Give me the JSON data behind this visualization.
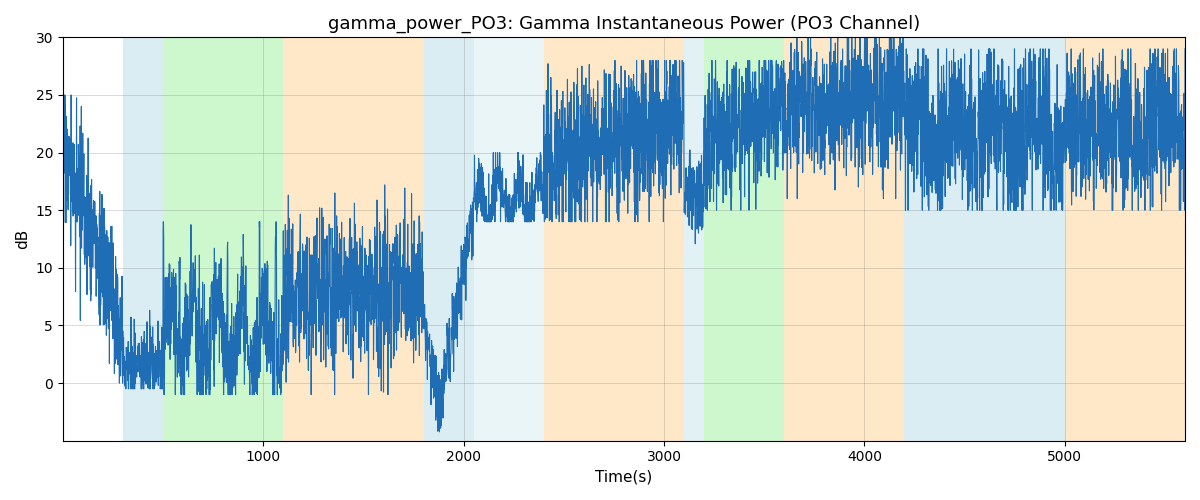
{
  "title": "gamma_power_PO3: Gamma Instantaneous Power (PO3 Channel)",
  "xlabel": "Time(s)",
  "ylabel": "dB",
  "xlim": [
    0,
    5600
  ],
  "ylim": [
    -5,
    30
  ],
  "yticks": [
    0,
    5,
    10,
    15,
    20,
    25,
    30
  ],
  "xticks": [
    1000,
    2000,
    3000,
    4000,
    5000
  ],
  "line_color": "#1f6eb5",
  "line_width": 0.8,
  "bg_regions": [
    {
      "xmin": 300,
      "xmax": 500,
      "color": "#add8e6",
      "alpha": 0.45
    },
    {
      "xmin": 500,
      "xmax": 1100,
      "color": "#90ee90",
      "alpha": 0.45
    },
    {
      "xmin": 1100,
      "xmax": 1800,
      "color": "#ffd699",
      "alpha": 0.55
    },
    {
      "xmin": 1800,
      "xmax": 2050,
      "color": "#add8e6",
      "alpha": 0.45
    },
    {
      "xmin": 2050,
      "xmax": 2400,
      "color": "#add8e6",
      "alpha": 0.25
    },
    {
      "xmin": 2400,
      "xmax": 3100,
      "color": "#ffd699",
      "alpha": 0.55
    },
    {
      "xmin": 3100,
      "xmax": 3200,
      "color": "#add8e6",
      "alpha": 0.35
    },
    {
      "xmin": 3200,
      "xmax": 3600,
      "color": "#90ee90",
      "alpha": 0.45
    },
    {
      "xmin": 3600,
      "xmax": 4200,
      "color": "#ffd699",
      "alpha": 0.55
    },
    {
      "xmin": 4200,
      "xmax": 5000,
      "color": "#add8e6",
      "alpha": 0.45
    },
    {
      "xmin": 5000,
      "xmax": 5600,
      "color": "#ffd699",
      "alpha": 0.55
    }
  ],
  "seed": 17,
  "figsize": [
    12,
    5
  ],
  "dpi": 100,
  "title_fontsize": 13,
  "label_fontsize": 11
}
